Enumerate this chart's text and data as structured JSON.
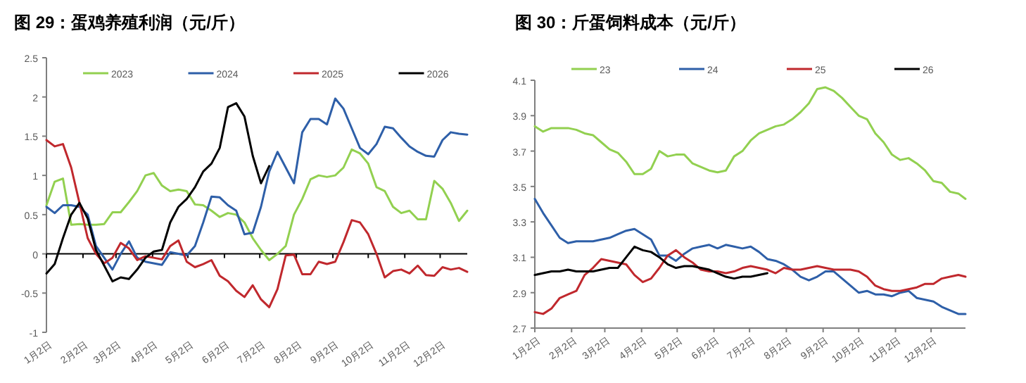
{
  "chart_data": [
    {
      "type": "line",
      "title": "图 29：蛋鸡养殖利润（元/斤）",
      "legend": "top",
      "grid": false,
      "marker": "none",
      "line_style": "solid",
      "x": [
        "--01-02",
        "--01-09",
        "--01-16",
        "--01-23",
        "--01-30",
        "--02-06",
        "--02-13",
        "--02-20",
        "--02-27",
        "--03-06",
        "--03-13",
        "--03-20",
        "--03-27",
        "--04-03",
        "--04-10",
        "--04-17",
        "--04-24",
        "--05-01",
        "--05-08",
        "--05-15",
        "--05-22",
        "--05-29",
        "--06-05",
        "--06-12",
        "--06-19",
        "--06-26",
        "--07-03",
        "--07-10",
        "--07-17",
        "--07-24",
        "--07-31",
        "--08-07",
        "--08-14",
        "--08-21",
        "--08-28",
        "--09-04",
        "--09-11",
        "--09-18",
        "--09-25",
        "--10-02",
        "--10-09",
        "--10-16",
        "--10-23",
        "--10-30",
        "--11-06",
        "--11-13",
        "--11-20",
        "--11-27",
        "--12-04",
        "--12-11",
        "--12-18",
        "--12-25"
      ],
      "xlim": [
        "--01-02",
        "--12-25"
      ],
      "xticks": [
        {
          "value": "--01-02",
          "label": "1月2日"
        },
        {
          "value": "--02-02",
          "label": "2月2日"
        },
        {
          "value": "--03-02",
          "label": "3月2日"
        },
        {
          "value": "--04-02",
          "label": "4月2日"
        },
        {
          "value": "--05-02",
          "label": "5月2日"
        },
        {
          "value": "--06-02",
          "label": "6月2日"
        },
        {
          "value": "--07-02",
          "label": "7月2日"
        },
        {
          "value": "--08-02",
          "label": "8月2日"
        },
        {
          "value": "--09-02",
          "label": "9月2日"
        },
        {
          "value": "--10-02",
          "label": "10月2日"
        },
        {
          "value": "--11-02",
          "label": "11月2日"
        },
        {
          "value": "--12-02",
          "label": "12月2日"
        }
      ],
      "ylim": [
        -1,
        2.5
      ],
      "yticks": [
        -1,
        -0.5,
        0,
        0.5,
        1,
        1.5,
        2,
        2.5
      ],
      "ref_lines": [
        {
          "axis": "y",
          "value": 0,
          "color": "#000000"
        }
      ],
      "series": [
        {
          "name": "2023",
          "color": "#92d050",
          "values": [
            0.62,
            0.92,
            0.96,
            0.37,
            0.38,
            0.37,
            0.37,
            0.38,
            0.53,
            0.53,
            0.66,
            0.8,
            1.0,
            1.03,
            0.87,
            0.8,
            0.82,
            0.8,
            0.63,
            0.62,
            0.55,
            0.47,
            0.52,
            0.5,
            0.4,
            0.2,
            0.05,
            -0.08,
            0.0,
            0.1,
            0.5,
            0.7,
            0.95,
            1.0,
            0.98,
            1.0,
            1.1,
            1.33,
            1.28,
            1.15,
            0.85,
            0.8,
            0.6,
            0.52,
            0.55,
            0.44,
            0.44,
            0.93,
            0.83,
            0.65,
            0.42,
            0.55
          ]
        },
        {
          "name": "2024",
          "color": "#2e5fa8",
          "values": [
            0.6,
            0.52,
            0.62,
            0.62,
            0.6,
            0.5,
            0.1,
            -0.05,
            -0.2,
            0.0,
            0.16,
            -0.05,
            -0.1,
            -0.12,
            -0.14,
            0.02,
            0.0,
            -0.02,
            0.1,
            0.4,
            0.73,
            0.72,
            0.62,
            0.55,
            0.25,
            0.27,
            0.6,
            1.05,
            1.3,
            1.1,
            0.9,
            1.55,
            1.72,
            1.72,
            1.65,
            1.98,
            1.85,
            1.6,
            1.35,
            1.27,
            1.4,
            1.62,
            1.6,
            1.48,
            1.37,
            1.3,
            1.25,
            1.24,
            1.45,
            1.55,
            1.53,
            1.52
          ]
        },
        {
          "name": "2025",
          "color": "#c0282d",
          "values": [
            1.45,
            1.37,
            1.4,
            1.1,
            0.65,
            0.2,
            0.0,
            -0.12,
            -0.05,
            0.14,
            0.07,
            -0.08,
            -0.03,
            -0.05,
            -0.07,
            0.1,
            0.17,
            -0.1,
            -0.17,
            -0.13,
            -0.08,
            -0.28,
            -0.35,
            -0.47,
            -0.55,
            -0.4,
            -0.58,
            -0.68,
            -0.45,
            -0.02,
            -0.01,
            -0.26,
            -0.26,
            -0.1,
            -0.13,
            -0.1,
            0.15,
            0.43,
            0.4,
            0.25,
            0.0,
            -0.3,
            -0.22,
            -0.2,
            -0.25,
            -0.15,
            -0.27,
            -0.28,
            -0.17,
            -0.2,
            -0.18,
            -0.23
          ]
        },
        {
          "name": "2026",
          "color": "#000000",
          "values": [
            -0.25,
            -0.13,
            0.2,
            0.5,
            0.65,
            0.45,
            0.05,
            -0.15,
            -0.35,
            -0.3,
            -0.32,
            -0.2,
            -0.05,
            0.03,
            0.05,
            0.4,
            0.6,
            0.7,
            0.85,
            1.05,
            1.15,
            1.35,
            1.87,
            1.92,
            1.75,
            1.25,
            0.9,
            1.12,
            null,
            null,
            null,
            null,
            null,
            null,
            null,
            null,
            null,
            null,
            null,
            null,
            null,
            null,
            null,
            null,
            null,
            null,
            null,
            null,
            null,
            null,
            null,
            null
          ]
        }
      ]
    },
    {
      "type": "line",
      "title": "图 30：斤蛋饲料成本（元/斤）",
      "legend": "top",
      "grid": false,
      "marker": "none",
      "line_style": "solid",
      "x": [
        "--01-02",
        "--01-09",
        "--01-16",
        "--01-23",
        "--01-30",
        "--02-06",
        "--02-13",
        "--02-20",
        "--02-27",
        "--03-06",
        "--03-13",
        "--03-20",
        "--03-27",
        "--04-03",
        "--04-10",
        "--04-17",
        "--04-24",
        "--05-01",
        "--05-08",
        "--05-15",
        "--05-22",
        "--05-29",
        "--06-05",
        "--06-12",
        "--06-19",
        "--06-26",
        "--07-03",
        "--07-10",
        "--07-17",
        "--07-24",
        "--07-31",
        "--08-07",
        "--08-14",
        "--08-21",
        "--08-28",
        "--09-04",
        "--09-11",
        "--09-18",
        "--09-25",
        "--10-02",
        "--10-09",
        "--10-16",
        "--10-23",
        "--10-30",
        "--11-06",
        "--11-13",
        "--11-20",
        "--11-27",
        "--12-04",
        "--12-11",
        "--12-18",
        "--12-25",
        "--12-31"
      ],
      "xlim": [
        "--01-02",
        "--12-31"
      ],
      "xticks": [
        {
          "value": "--01-02",
          "label": "1月2日"
        },
        {
          "value": "--02-02",
          "label": "2月2日"
        },
        {
          "value": "--03-02",
          "label": "3月2日"
        },
        {
          "value": "--04-02",
          "label": "4月2日"
        },
        {
          "value": "--05-02",
          "label": "5月2日"
        },
        {
          "value": "--06-02",
          "label": "6月2日"
        },
        {
          "value": "--07-02",
          "label": "7月2日"
        },
        {
          "value": "--08-02",
          "label": "8月2日"
        },
        {
          "value": "--09-02",
          "label": "9月2日"
        },
        {
          "value": "--10-02",
          "label": "10月2日"
        },
        {
          "value": "--11-02",
          "label": "11月2日"
        },
        {
          "value": "--12-02",
          "label": "12月2日"
        }
      ],
      "ylim": [
        2.7,
        4.1
      ],
      "yticks": [
        2.7,
        2.9,
        3.1,
        3.3,
        3.5,
        3.7,
        3.9,
        4.1
      ],
      "series": [
        {
          "name": "23",
          "color": "#92d050",
          "values": [
            3.84,
            3.81,
            3.83,
            3.83,
            3.83,
            3.82,
            3.8,
            3.79,
            3.75,
            3.71,
            3.69,
            3.64,
            3.57,
            3.57,
            3.6,
            3.7,
            3.67,
            3.68,
            3.68,
            3.63,
            3.61,
            3.59,
            3.58,
            3.59,
            3.67,
            3.7,
            3.76,
            3.8,
            3.82,
            3.84,
            3.85,
            3.88,
            3.92,
            3.97,
            4.05,
            4.06,
            4.04,
            4.0,
            3.95,
            3.9,
            3.88,
            3.8,
            3.75,
            3.68,
            3.65,
            3.66,
            3.63,
            3.59,
            3.53,
            3.52,
            3.47,
            3.46,
            3.43
          ]
        },
        {
          "name": "24",
          "color": "#2e5fa8",
          "values": [
            3.43,
            3.35,
            3.28,
            3.21,
            3.18,
            3.19,
            3.19,
            3.19,
            3.2,
            3.21,
            3.23,
            3.25,
            3.26,
            3.23,
            3.2,
            3.11,
            3.11,
            3.08,
            3.12,
            3.15,
            3.16,
            3.17,
            3.15,
            3.17,
            3.16,
            3.15,
            3.16,
            3.13,
            3.09,
            3.08,
            3.06,
            3.03,
            2.99,
            2.97,
            2.99,
            3.02,
            3.02,
            2.98,
            2.94,
            2.9,
            2.91,
            2.89,
            2.89,
            2.88,
            2.9,
            2.91,
            2.87,
            2.86,
            2.85,
            2.82,
            2.8,
            2.78,
            2.78
          ]
        },
        {
          "name": "25",
          "color": "#c0282d",
          "values": [
            2.79,
            2.78,
            2.81,
            2.87,
            2.89,
            2.91,
            3.0,
            3.04,
            3.09,
            3.08,
            3.07,
            3.06,
            3.0,
            2.96,
            2.98,
            3.04,
            3.11,
            3.14,
            3.1,
            3.07,
            3.03,
            3.02,
            3.02,
            3.01,
            3.02,
            3.04,
            3.05,
            3.04,
            3.03,
            3.01,
            3.04,
            3.03,
            3.03,
            3.04,
            3.05,
            3.04,
            3.03,
            3.03,
            3.03,
            3.02,
            2.99,
            2.94,
            2.92,
            2.91,
            2.91,
            2.92,
            2.93,
            2.95,
            2.95,
            2.98,
            2.99,
            3.0,
            2.99
          ]
        },
        {
          "name": "26",
          "color": "#000000",
          "values": [
            3.0,
            3.01,
            3.02,
            3.02,
            3.03,
            3.02,
            3.02,
            3.02,
            3.03,
            3.04,
            3.04,
            3.1,
            3.16,
            3.14,
            3.13,
            3.1,
            3.06,
            3.04,
            3.05,
            3.05,
            3.04,
            3.03,
            3.01,
            2.99,
            2.98,
            2.99,
            2.99,
            3.0,
            3.01,
            null,
            null,
            null,
            null,
            null,
            null,
            null,
            null,
            null,
            null,
            null,
            null,
            null,
            null,
            null,
            null,
            null,
            null,
            null,
            null,
            null,
            null,
            null,
            null
          ]
        }
      ]
    }
  ]
}
